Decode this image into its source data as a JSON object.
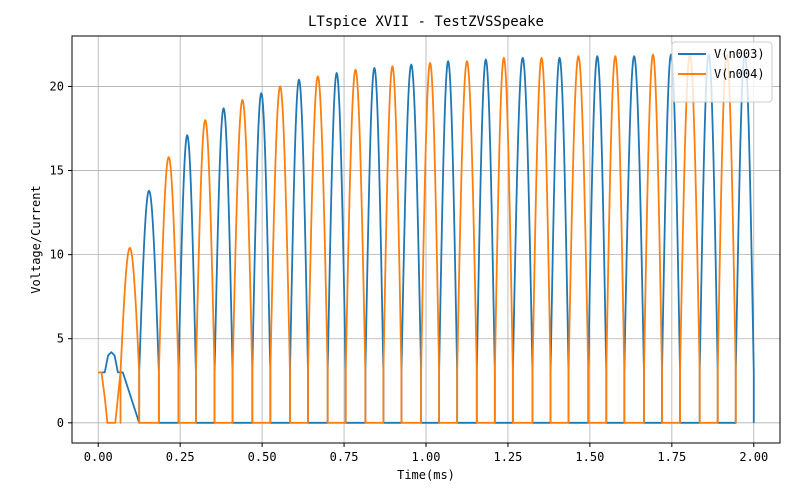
{
  "chart_data": {
    "type": "line",
    "title": "LTspice XVII - TestZVSSpeake",
    "xlabel": "Time(ms)",
    "ylabel": "Voltage/Current",
    "xlim": [
      -0.08,
      2.08
    ],
    "ylim": [
      -1.2,
      23.0
    ],
    "grid": true,
    "legend_position": "top-right",
    "xticks": [
      0.0,
      0.25,
      0.5,
      0.75,
      1.0,
      1.25,
      1.5,
      1.75,
      2.0
    ],
    "xtick_labels": [
      "0.00",
      "0.25",
      "0.50",
      "0.75",
      "1.00",
      "1.25",
      "1.50",
      "1.75",
      "2.00"
    ],
    "yticks": [
      0,
      5,
      10,
      15,
      20
    ],
    "ytick_labels": [
      "0",
      "5",
      "10",
      "15",
      "20"
    ],
    "series": [
      {
        "name": "V(n003)",
        "color": "#1f77b4",
        "startup": [
          [
            0.0,
            3.0
          ],
          [
            0.02,
            3.0
          ],
          [
            0.03,
            4.0
          ],
          [
            0.04,
            4.2
          ],
          [
            0.05,
            4.0
          ],
          [
            0.06,
            3.0
          ],
          [
            0.075,
            3.0
          ]
        ],
        "pulses": [
          {
            "start": 0.125,
            "end": 0.185,
            "peak": 13.8
          },
          {
            "start": 0.245,
            "end": 0.298,
            "peak": 17.1
          },
          {
            "start": 0.355,
            "end": 0.41,
            "peak": 18.7
          },
          {
            "start": 0.47,
            "end": 0.525,
            "peak": 19.6
          },
          {
            "start": 0.585,
            "end": 0.64,
            "peak": 20.4
          },
          {
            "start": 0.7,
            "end": 0.755,
            "peak": 20.8
          },
          {
            "start": 0.815,
            "end": 0.87,
            "peak": 21.1
          },
          {
            "start": 0.925,
            "end": 0.985,
            "peak": 21.3
          },
          {
            "start": 1.04,
            "end": 1.095,
            "peak": 21.5
          },
          {
            "start": 1.155,
            "end": 1.21,
            "peak": 21.6
          },
          {
            "start": 1.265,
            "end": 1.325,
            "peak": 21.7
          },
          {
            "start": 1.38,
            "end": 1.435,
            "peak": 21.7
          },
          {
            "start": 1.495,
            "end": 1.55,
            "peak": 21.8
          },
          {
            "start": 1.605,
            "end": 1.665,
            "peak": 21.8
          },
          {
            "start": 1.72,
            "end": 1.775,
            "peak": 21.9
          },
          {
            "start": 1.835,
            "end": 1.89,
            "peak": 21.9
          },
          {
            "start": 1.945,
            "end": 2.0,
            "peak": 21.9
          }
        ]
      },
      {
        "name": "V(n004)",
        "color": "#ff7f0e",
        "startup": [
          [
            0.0,
            3.0
          ],
          [
            0.01,
            3.0
          ],
          [
            0.02,
            1.5
          ],
          [
            0.028,
            0.0
          ],
          [
            0.052,
            0.0
          ],
          [
            0.06,
            1.5
          ],
          [
            0.068,
            3.0
          ]
        ],
        "pulses": [
          {
            "start": 0.068,
            "end": 0.125,
            "peak": 10.4
          },
          {
            "start": 0.185,
            "end": 0.245,
            "peak": 15.8
          },
          {
            "start": 0.298,
            "end": 0.355,
            "peak": 18.0
          },
          {
            "start": 0.41,
            "end": 0.47,
            "peak": 19.2
          },
          {
            "start": 0.525,
            "end": 0.585,
            "peak": 20.0
          },
          {
            "start": 0.64,
            "end": 0.7,
            "peak": 20.6
          },
          {
            "start": 0.755,
            "end": 0.815,
            "peak": 21.0
          },
          {
            "start": 0.87,
            "end": 0.925,
            "peak": 21.2
          },
          {
            "start": 0.985,
            "end": 1.04,
            "peak": 21.4
          },
          {
            "start": 1.095,
            "end": 1.155,
            "peak": 21.5
          },
          {
            "start": 1.21,
            "end": 1.265,
            "peak": 21.7
          },
          {
            "start": 1.325,
            "end": 1.38,
            "peak": 21.7
          },
          {
            "start": 1.435,
            "end": 1.495,
            "peak": 21.8
          },
          {
            "start": 1.55,
            "end": 1.605,
            "peak": 21.8
          },
          {
            "start": 1.665,
            "end": 1.72,
            "peak": 21.9
          },
          {
            "start": 1.775,
            "end": 1.835,
            "peak": 21.9
          },
          {
            "start": 1.89,
            "end": 1.945,
            "peak": 21.9
          }
        ]
      }
    ]
  }
}
